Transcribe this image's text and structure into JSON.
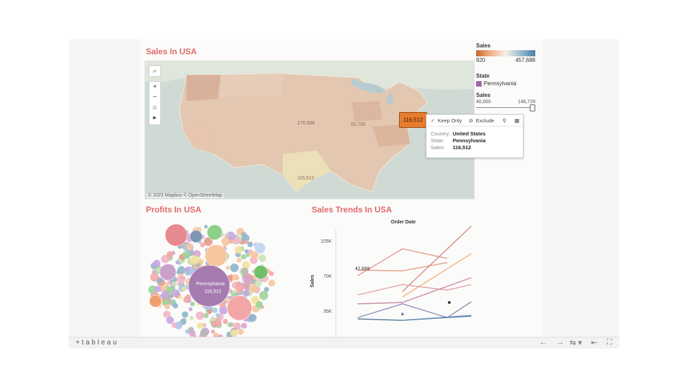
{
  "map_sheet": {
    "title": "Sales In USA",
    "attribution": "© 2023 Mapbox  © OpenStreetMap",
    "state_labels": [
      "176,588",
      "62,790",
      "116,512"
    ],
    "selected_value": "116,512"
  },
  "map_tools": {
    "search_icon": "magnifier-icon",
    "zoom_in": "+",
    "zoom_out": "−",
    "home_icon": "home-icon",
    "pan_icon": "play-icon"
  },
  "legend": {
    "sales_title": "Sales",
    "sales_min": "920",
    "sales_max": "457,688",
    "state_title": "State",
    "state_value": "Pennsylvania",
    "size_title": "Sales",
    "size_min": "40,000",
    "size_max": "146,729",
    "colors": {
      "low": "#c8662a",
      "mid": "#f7efe6",
      "high": "#4a7fa5",
      "state": "#a165a6"
    }
  },
  "tooltip": {
    "keep_only": "Keep Only",
    "exclude": "Exclude",
    "country_label": "Country:",
    "country_value": "United States",
    "state_label": "State:",
    "state_value": "Pennsylvania",
    "sales_label": "Sales:",
    "sales_value": "116,512"
  },
  "profits_sheet": {
    "title": "Profits In USA",
    "center_label_1": "Pennsylvania",
    "center_label_2": "116,512"
  },
  "trends_sheet": {
    "title": "Sales Trends In USA",
    "axis_title": "Order Date",
    "y_axis_label": "Sales",
    "annotation": "42,688"
  },
  "chart_data": {
    "type": "line",
    "title": "Sales Trends In USA",
    "xlabel": "Order Date",
    "ylabel": "Sales",
    "yticks": [
      "105K",
      "70K",
      "35K"
    ],
    "ylim": [
      15000,
      125000
    ]
  },
  "bottom_toolbar": {
    "logo": "+tableau",
    "back_icon": "←",
    "forward_icon": "→",
    "share_icon": "⇆ ▾",
    "revert_icon": "⇤",
    "fullscreen_icon": "⛶"
  }
}
